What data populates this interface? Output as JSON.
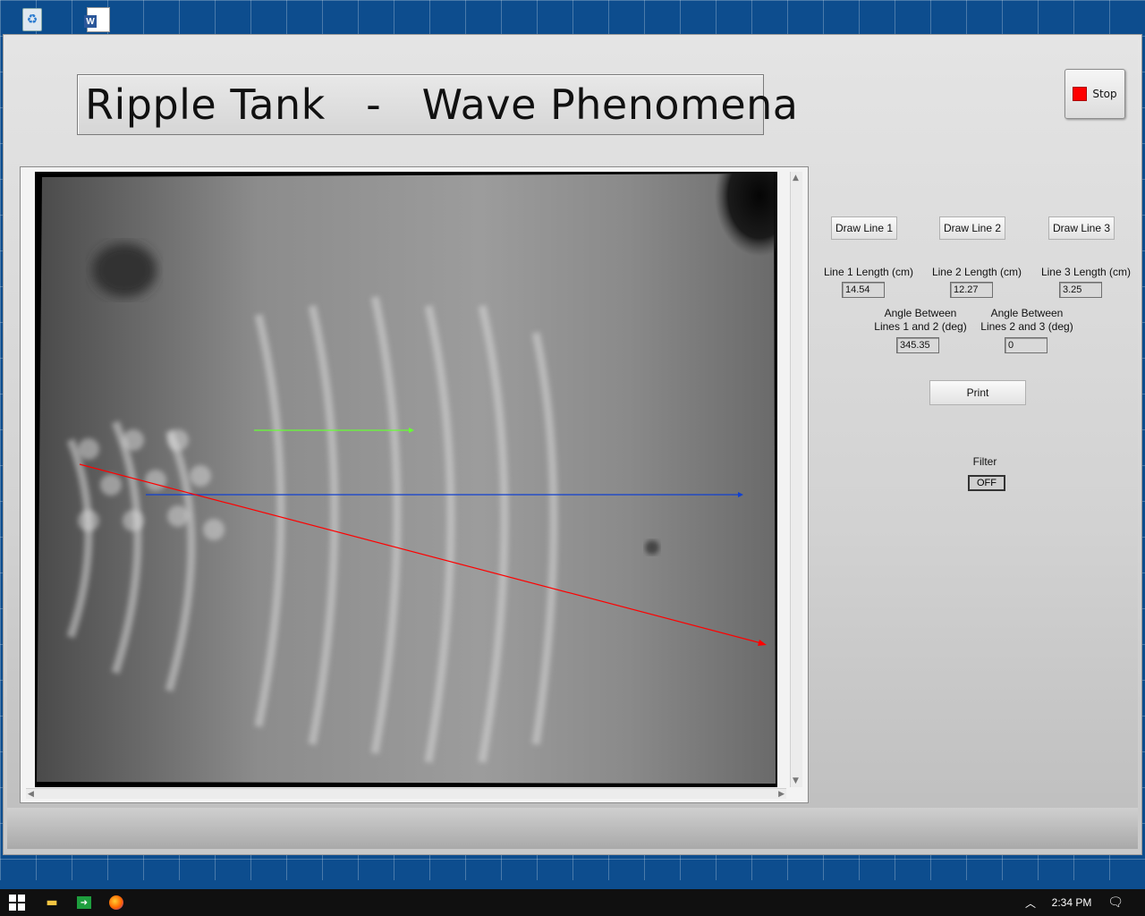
{
  "desktop": {
    "icons": [
      "recycle-bin-icon",
      "word-document-icon"
    ]
  },
  "app": {
    "title": "Ripple Tank   -   Wave Phenomena",
    "stop_label": "Stop",
    "stop_color": "#ff0000"
  },
  "controls": {
    "draw_line_1": "Draw Line 1",
    "draw_line_2": "Draw Line 2",
    "draw_line_3": "Draw Line 3",
    "line1_label": "Line 1 Length (cm)",
    "line2_label": "Line 2 Length (cm)",
    "line3_label": "Line 3 Length (cm)",
    "line1_value": "14.54",
    "line2_value": "12.27",
    "line3_value": "3.25",
    "angle12_label_1": "Angle Between",
    "angle12_label_2": "Lines 1 and 2 (deg)",
    "angle23_label_1": "Angle Between",
    "angle23_label_2": "Lines 2 and 3 (deg)",
    "angle12_value": "345.35",
    "angle23_value": "0",
    "print_label": "Print",
    "filter_label": "Filter",
    "filter_value": "OFF"
  },
  "overlay_lines": {
    "line1_color": "#ff0000",
    "line2_color": "#1040d0",
    "line3_color": "#66ff33"
  },
  "taskbar": {
    "clock": "2:34 PM"
  }
}
